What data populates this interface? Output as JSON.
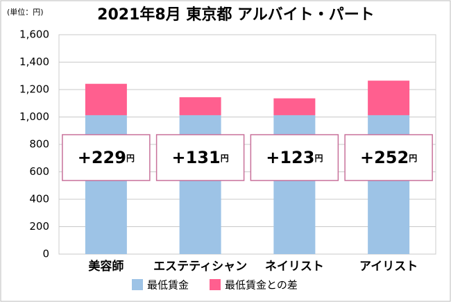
{
  "chart_data": {
    "type": "stacked-bar",
    "title": "2021年8月 東京都 アルバイト・パート",
    "unit_label": "(単位：円)",
    "categories": [
      "美容師",
      "エステティシャン",
      "ネイリスト",
      "アイリスト"
    ],
    "series": [
      {
        "name": "最低賃金",
        "color": "#9dc3e6",
        "values": [
          1013,
          1013,
          1013,
          1013
        ]
      },
      {
        "name": "最低賃金との差",
        "color": "#ff5f8f",
        "values": [
          229,
          131,
          123,
          252
        ],
        "value_labels": [
          "+229円",
          "+131円",
          "+123円",
          "+252円"
        ]
      }
    ],
    "ylim": [
      0,
      1600
    ],
    "yticks": [
      0,
      200,
      400,
      600,
      800,
      {
        "value": 1000,
        "label": "1,000"
      },
      {
        "value": 1200,
        "label": "1,200"
      },
      {
        "value": 1400,
        "label": "1,400"
      },
      {
        "value": 1600,
        "label": "1,600"
      }
    ],
    "grid": true
  }
}
